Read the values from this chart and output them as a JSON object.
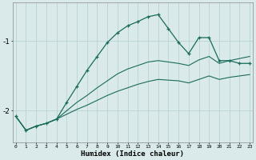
{
  "xlabel": "Humidex (Indice chaleur)",
  "bg_color": "#daeaea",
  "grid_color": "#b8d4d4",
  "line_color": "#1a6b5a",
  "x_values": [
    0,
    1,
    2,
    3,
    4,
    5,
    6,
    7,
    8,
    9,
    10,
    11,
    12,
    13,
    14,
    15,
    16,
    17,
    18,
    19,
    20,
    21,
    22,
    23
  ],
  "y_main": [
    -2.08,
    -2.28,
    -2.22,
    -2.18,
    -2.12,
    -1.88,
    -1.65,
    -1.42,
    -1.22,
    -1.02,
    -0.88,
    -0.78,
    -0.72,
    -0.65,
    -0.62,
    -0.82,
    -1.02,
    -1.18,
    -0.95,
    -0.95,
    -1.28,
    -1.28,
    -1.32,
    -1.32
  ],
  "y_line1": [
    -2.08,
    -2.28,
    -2.22,
    -2.18,
    -2.12,
    -2.0,
    -1.88,
    -1.78,
    -1.67,
    -1.57,
    -1.47,
    -1.4,
    -1.35,
    -1.3,
    -1.28,
    -1.3,
    -1.32,
    -1.35,
    -1.27,
    -1.22,
    -1.32,
    -1.28,
    -1.25,
    -1.22
  ],
  "y_line2": [
    -2.08,
    -2.28,
    -2.22,
    -2.18,
    -2.12,
    -2.05,
    -1.98,
    -1.92,
    -1.85,
    -1.78,
    -1.72,
    -1.67,
    -1.62,
    -1.58,
    -1.55,
    -1.56,
    -1.57,
    -1.6,
    -1.55,
    -1.5,
    -1.55,
    -1.52,
    -1.5,
    -1.48
  ],
  "yticks": [
    -2,
    -1
  ],
  "xlim": [
    -0.3,
    23.3
  ],
  "ylim": [
    -2.45,
    -0.45
  ]
}
